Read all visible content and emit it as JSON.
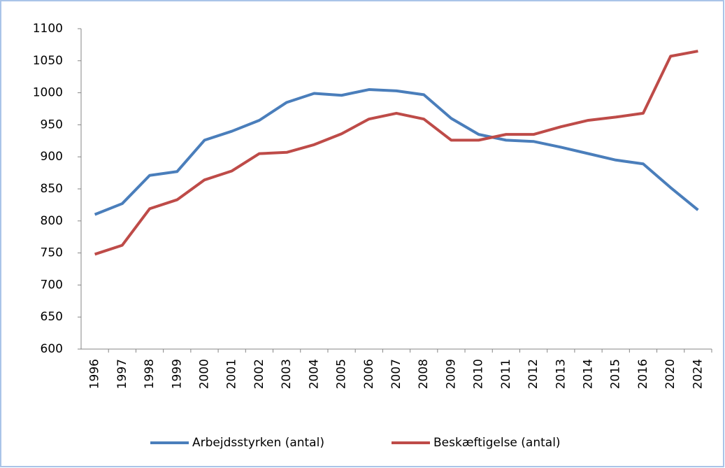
{
  "chart_data": {
    "type": "line",
    "categories": [
      "1996",
      "1997",
      "1998",
      "1999",
      "2000",
      "2001",
      "2002",
      "2003",
      "2004",
      "2005",
      "2006",
      "2007",
      "2008",
      "2009",
      "2010",
      "2011",
      "2012",
      "2013",
      "2014",
      "2015",
      "2016",
      "2020",
      "2024"
    ],
    "series": [
      {
        "name": "Arbejdsstyrken (antal)",
        "color": "#4a7ebb",
        "values": [
          810,
          827,
          871,
          877,
          926,
          940,
          957,
          985,
          999,
          996,
          1005,
          1003,
          997,
          960,
          935,
          926,
          924,
          915,
          905,
          895,
          889,
          852,
          817
        ]
      },
      {
        "name": "Beskæftigelse (antal)",
        "color": "#be4b48",
        "values": [
          748,
          762,
          819,
          833,
          864,
          878,
          905,
          907,
          919,
          936,
          959,
          968,
          959,
          926,
          926,
          935,
          935,
          947,
          957,
          962,
          968,
          1057,
          1065
        ]
      }
    ],
    "ylim": [
      600,
      1100
    ],
    "yticks": [
      600,
      650,
      700,
      750,
      800,
      850,
      900,
      950,
      1000,
      1050,
      1100
    ],
    "grid": false,
    "legend": "bottom"
  }
}
